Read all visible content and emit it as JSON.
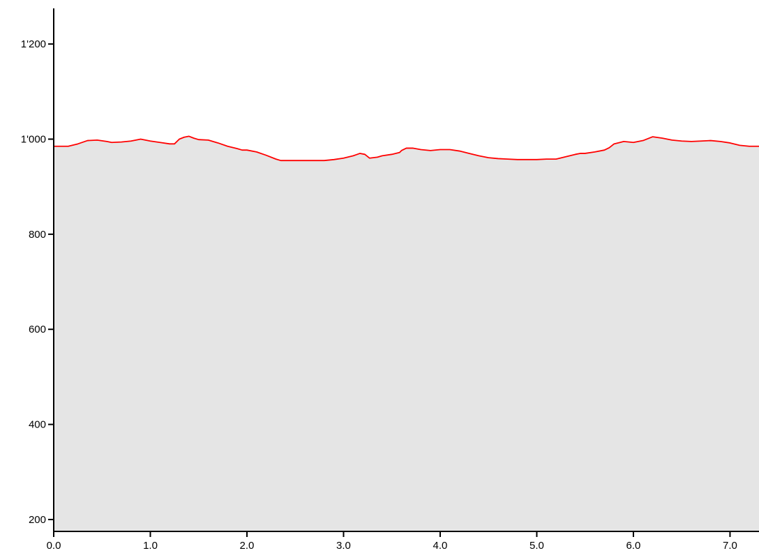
{
  "chart_data": {
    "type": "area",
    "title": "",
    "xlabel": "",
    "ylabel": "",
    "xlim": [
      0,
      7.3
    ],
    "ylim": [
      175,
      1275
    ],
    "x_ticks": [
      0,
      1,
      2,
      3,
      4,
      5,
      6,
      7
    ],
    "x_tick_labels": [
      "0.0",
      "1.0",
      "2.0",
      "3.0",
      "4.0",
      "5.0",
      "6.0",
      "7.0"
    ],
    "y_ticks": [
      200,
      400,
      600,
      800,
      1000,
      1200
    ],
    "y_tick_labels": [
      "200",
      "400",
      "600",
      "800",
      "1'000",
      "1'200"
    ],
    "grid": false,
    "colors": {
      "line": "#ff0000",
      "fill": "#e5e5e5",
      "axis": "#000000"
    },
    "series": [
      {
        "x": [
          0.0,
          0.15,
          0.25,
          0.35,
          0.45,
          0.55,
          0.6,
          0.7,
          0.8,
          0.9,
          1.0,
          1.1,
          1.2,
          1.25,
          1.3,
          1.35,
          1.4,
          1.45,
          1.5,
          1.6,
          1.7,
          1.8,
          1.9,
          1.95,
          2.0,
          2.1,
          2.2,
          2.3,
          2.35,
          2.4,
          2.5,
          2.6,
          2.7,
          2.8,
          2.9,
          3.0,
          3.1,
          3.17,
          3.22,
          3.27,
          3.35,
          3.4,
          3.5,
          3.58,
          3.6,
          3.65,
          3.72,
          3.8,
          3.9,
          4.0,
          4.1,
          4.2,
          4.3,
          4.4,
          4.5,
          4.6,
          4.7,
          4.8,
          4.9,
          5.0,
          5.1,
          5.2,
          5.3,
          5.4,
          5.45,
          5.5,
          5.6,
          5.7,
          5.75,
          5.8,
          5.9,
          6.0,
          6.1,
          6.2,
          6.3,
          6.4,
          6.5,
          6.6,
          6.7,
          6.8,
          6.9,
          7.0,
          7.1,
          7.2,
          7.3
        ],
        "y": [
          985,
          985,
          990,
          997,
          998,
          995,
          993,
          994,
          996,
          1000,
          996,
          993,
          990,
          990,
          1000,
          1004,
          1006,
          1002,
          999,
          998,
          992,
          985,
          980,
          977,
          977,
          973,
          966,
          958,
          955,
          955,
          955,
          955,
          955,
          955,
          957,
          960,
          965,
          970,
          968,
          960,
          962,
          965,
          968,
          972,
          976,
          981,
          981,
          978,
          976,
          978,
          978,
          975,
          970,
          965,
          961,
          959,
          958,
          957,
          957,
          957,
          958,
          958,
          963,
          968,
          970,
          970,
          973,
          977,
          982,
          990,
          995,
          993,
          997,
          1005,
          1002,
          998,
          996,
          995,
          996,
          997,
          995,
          992,
          987,
          985,
          985
        ]
      }
    ]
  }
}
